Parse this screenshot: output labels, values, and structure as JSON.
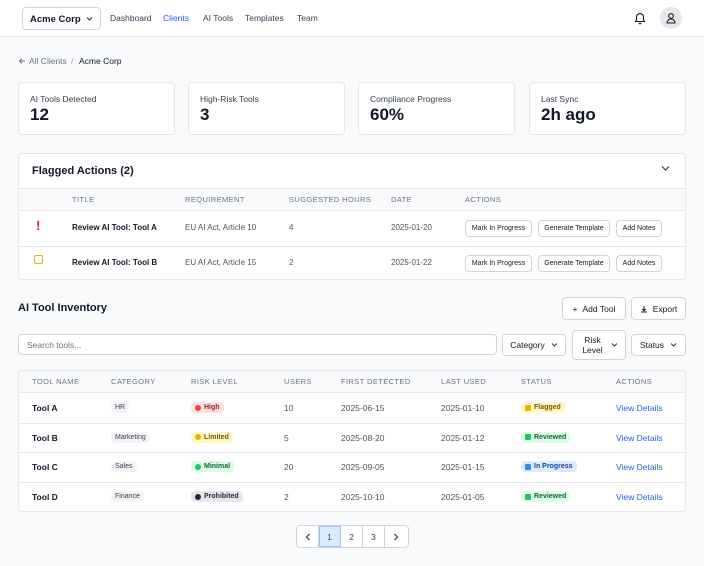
{
  "nav": {
    "org": "Acme Corp",
    "links": [
      "Dashboard",
      "Clients",
      "AI Tools",
      "Templates",
      "Team"
    ]
  },
  "breadcrumb": {
    "back": "All Clients",
    "current": "Acme Corp"
  },
  "stats": [
    {
      "label": "AI Tools Detected",
      "value": 12
    },
    {
      "label": "High-Risk Tools",
      "value": 3
    },
    {
      "label": "Compliance Progress",
      "value": "60%"
    },
    {
      "label": "Last Sync",
      "value": "2h ago"
    }
  ],
  "flagged": {
    "title": "Flagged Actions (2)",
    "columns": [
      "TITLE",
      "REQUIREMENT",
      "SUGGESTED HOURS",
      "DATE",
      "ACTIONS"
    ],
    "rows": [
      {
        "title": "Review AI Tool: Tool A",
        "requirement": "EU AI Act, Article 10",
        "hours": 4,
        "date": "2025-01-20"
      },
      {
        "title": "Review AI Tool: Tool B",
        "requirement": "EU AI Act, Article 15",
        "hours": 2,
        "date": "2025-01-22"
      }
    ],
    "buttons": [
      "Mark In Progress",
      "Generate Template",
      "Add Notes"
    ]
  },
  "inventory": {
    "title": "AI Tool Inventory",
    "add": "Add Tool",
    "export": "Export",
    "search_placeholder": "Search tools...",
    "filters": [
      "Category",
      "Risk Level",
      "Status"
    ],
    "columns": [
      "TOOL NAME",
      "CATEGORY",
      "RISK LEVEL",
      "USERS",
      "FIRST DETECTED",
      "LAST USED",
      "STATUS",
      "ACTIONS"
    ],
    "rows": [
      {
        "name": "Tool A",
        "category": "HR",
        "risk": "High",
        "users": 10,
        "first": "2025-06-15",
        "last": "2025-01-10",
        "status": "Flagged"
      },
      {
        "name": "Tool B",
        "category": "Marketing",
        "risk": "Limited",
        "users": 5,
        "first": "2025-08-20",
        "last": "2025-01-12",
        "status": "Reviewed"
      },
      {
        "name": "Tool C",
        "category": "Sales",
        "risk": "Minimal",
        "users": 20,
        "first": "2025-09-05",
        "last": "2025-01-15",
        "status": "In Progress"
      },
      {
        "name": "Tool D",
        "category": "Finance",
        "risk": "Prohibited",
        "users": 2,
        "first": "2025-10-10",
        "last": "2025-01-05",
        "status": "Reviewed"
      }
    ],
    "link": "View Details"
  },
  "pagination": [
    1,
    2,
    3
  ]
}
